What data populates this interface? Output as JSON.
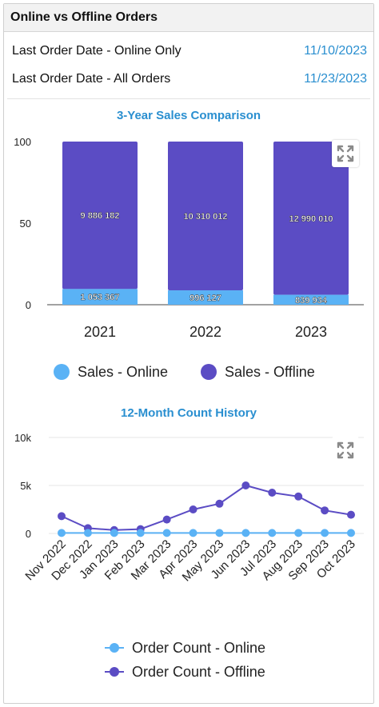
{
  "header": {
    "title": "Online vs Offline Orders"
  },
  "info": [
    {
      "label": "Last Order Date - Online Only",
      "value": "11/10/2023"
    },
    {
      "label": "Last Order Date - All Orders",
      "value": "11/23/2023"
    }
  ],
  "colors": {
    "accent": "#2a8fd0",
    "online": "#5ab2f5",
    "offline": "#5b4cc4"
  },
  "icons": {
    "expand": "expand-arrows-icon"
  },
  "chart_data": [
    {
      "type": "bar",
      "stacked": true,
      "normalized": true,
      "title": "3-Year Sales Comparison",
      "categories": [
        "2021",
        "2022",
        "2023"
      ],
      "series": [
        {
          "name": "Sales - Online",
          "values": [
            1053367,
            996127,
            839934
          ],
          "labels": [
            "1 053 367",
            "996 127",
            "839 934"
          ]
        },
        {
          "name": "Sales - Offline",
          "values": [
            9886182,
            10310012,
            12990010
          ],
          "labels": [
            "9 886 182",
            "10 310 012",
            "12 990 010"
          ]
        }
      ],
      "ylim": [
        0,
        100
      ],
      "yticks": [
        "0",
        "50",
        "100"
      ],
      "legend": "bottom"
    },
    {
      "type": "line",
      "title": "12-Month Count History",
      "categories": [
        "Nov 2022",
        "Dec 2022",
        "Jan 2023",
        "Feb 2023",
        "Mar 2023",
        "Apr 2023",
        "May 2023",
        "Jun 2023",
        "Jul 2023",
        "Aug 2023",
        "Sep 2023",
        "Oct 2023"
      ],
      "series": [
        {
          "name": "Order Count - Online",
          "values": [
            50,
            50,
            50,
            50,
            50,
            50,
            50,
            50,
            50,
            50,
            50,
            50
          ]
        },
        {
          "name": "Order Count - Offline",
          "values": [
            1800,
            550,
            350,
            450,
            1450,
            2500,
            3100,
            5000,
            4250,
            3850,
            2400,
            1950
          ]
        }
      ],
      "ylim": [
        0,
        10000
      ],
      "yticks": [
        "0",
        "5k",
        "10k"
      ],
      "legend": "bottom"
    }
  ]
}
